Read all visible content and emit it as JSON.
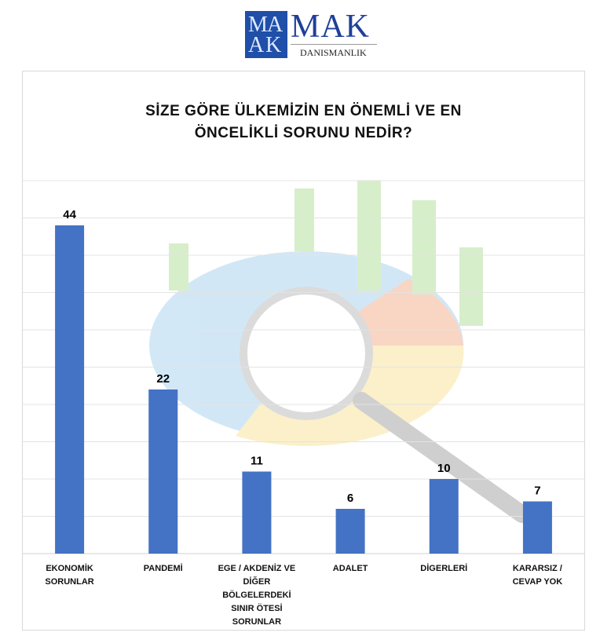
{
  "logo": {
    "box_letters": "MAK",
    "name": "MAK",
    "subtitle": "DANISMANLIK"
  },
  "chart_data": {
    "type": "bar",
    "title": "SİZE GÖRE ÜLKEMİZİN EN ÖNEMLİ VE EN ÖNCELİKLİ SORUNU NEDİR?",
    "categories": [
      "EKONOMİK SORUNLAR",
      "PANDEMİ",
      "EGE / AKDENİZ VE DİĞER BÖLGELERDEKİ SINIR ÖTESİ SORUNLAR",
      "ADALET",
      "DİGERLERİ",
      "KARARSIZ / CEVAP YOK"
    ],
    "values": [
      44,
      22,
      11,
      6,
      10,
      7
    ],
    "ylim": [
      0,
      50
    ],
    "grid": true,
    "xlabel": "",
    "ylabel": "",
    "bar_color": "#4472c4",
    "data_labels": true
  }
}
